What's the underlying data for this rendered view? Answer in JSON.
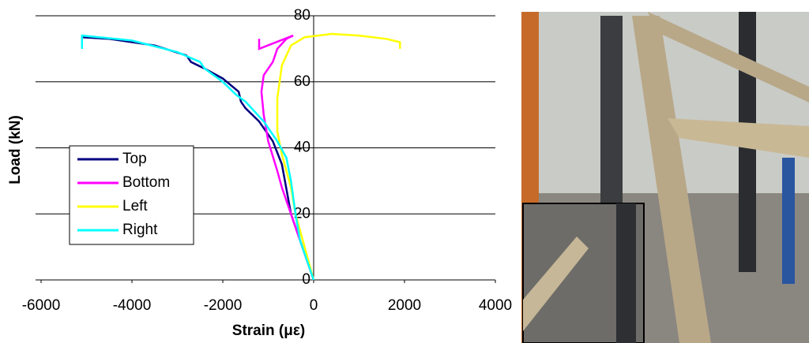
{
  "chart_data": {
    "type": "line",
    "x_label": "Strain (με)",
    "y_label": "Load (kN)",
    "xlim": [
      -6000,
      4000
    ],
    "xticks": [
      -6000,
      -4000,
      -2000,
      0,
      2000,
      4000
    ],
    "ylim": [
      0,
      80
    ],
    "yticks": [
      0,
      20,
      40,
      60,
      80
    ],
    "grid": true,
    "legend": "left",
    "series": [
      {
        "name": "Top",
        "color": "#000080",
        "x": [
          0,
          -300,
          -500,
          -700,
          -900,
          -1200,
          -1500,
          -1600,
          -1650,
          -2000,
          -2400,
          -2700,
          -2800,
          -3500,
          -4500,
          -5100
        ],
        "values": [
          0,
          12,
          20,
          35,
          42,
          48,
          52,
          54,
          57,
          61,
          64,
          66,
          68,
          71,
          73,
          73.5
        ]
      },
      {
        "name": "Bottom",
        "color": "#ff00ff",
        "x": [
          0,
          -300,
          -500,
          -700,
          -800,
          -1000,
          -1100,
          -1150,
          -1100,
          -900,
          -800,
          -600,
          -450,
          -1200,
          -1200
        ],
        "values": [
          0,
          12,
          20,
          28,
          33,
          42,
          50,
          57,
          62,
          66,
          70,
          73,
          74,
          70,
          73
        ]
      },
      {
        "name": "Left",
        "color": "#ffff00",
        "x": [
          0,
          -200,
          -400,
          -500,
          -700,
          -800,
          -800,
          -700,
          -500,
          -200,
          400,
          1000,
          1600,
          1900,
          1900
        ],
        "values": [
          0,
          10,
          20,
          28,
          38,
          45,
          55,
          65,
          71,
          73.5,
          74.5,
          74,
          73,
          72,
          70
        ]
      },
      {
        "name": "Right",
        "color": "#00ffff",
        "x": [
          0,
          -300,
          -400,
          -500,
          -600,
          -800,
          -1100,
          -1500,
          -1700,
          -2000,
          -2400,
          -2500,
          -3000,
          -4000,
          -5100,
          -5100
        ],
        "values": [
          0,
          12,
          20,
          30,
          37,
          42,
          48,
          54,
          56,
          60,
          64,
          66,
          69,
          72.5,
          74,
          70
        ]
      }
    ]
  }
}
